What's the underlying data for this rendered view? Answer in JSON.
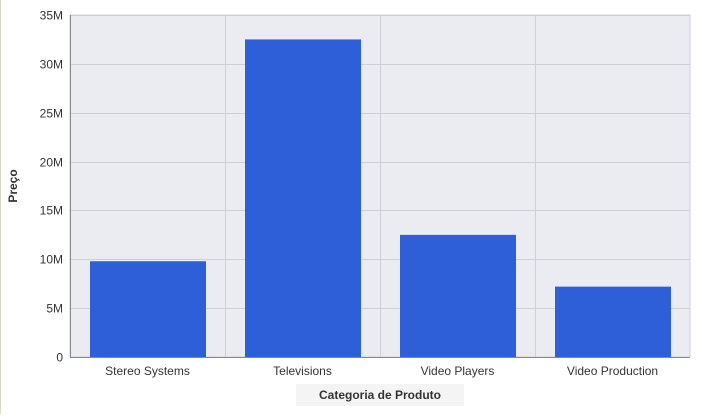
{
  "chart_data": {
    "type": "bar",
    "title": "",
    "xlabel": "Categoria de Produto",
    "ylabel": "Preço",
    "categories": [
      "Stereo Systems",
      "Televisions",
      "Video Players",
      "Video Production"
    ],
    "values": [
      9800000,
      32500000,
      12500000,
      7200000
    ],
    "ylim": [
      0,
      35000000
    ],
    "yticks": [
      {
        "value": 0,
        "label": "0"
      },
      {
        "value": 5000000,
        "label": "5M"
      },
      {
        "value": 10000000,
        "label": "10M"
      },
      {
        "value": 15000000,
        "label": "15M"
      },
      {
        "value": 20000000,
        "label": "20M"
      },
      {
        "value": 25000000,
        "label": "25M"
      },
      {
        "value": 30000000,
        "label": "30M"
      },
      {
        "value": 35000000,
        "label": "35M"
      }
    ],
    "grid": true,
    "colors": {
      "bar": "#2f5fd8",
      "plot_background": "#ebebf2",
      "grid": "#cfcfd6",
      "axis": "#888888"
    }
  }
}
